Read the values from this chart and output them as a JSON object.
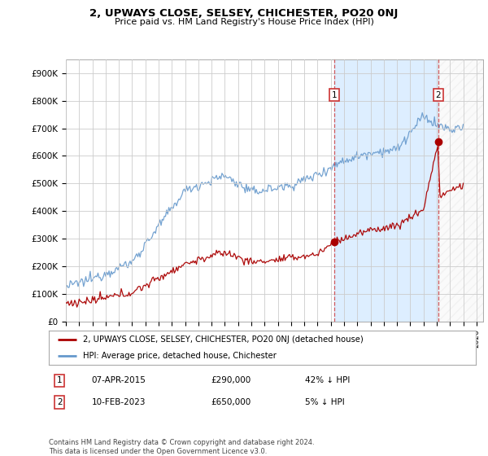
{
  "title": "2, UPWAYS CLOSE, SELSEY, CHICHESTER, PO20 0NJ",
  "subtitle": "Price paid vs. HM Land Registry's House Price Index (HPI)",
  "ylabel_ticks": [
    "£0",
    "£100K",
    "£200K",
    "£300K",
    "£400K",
    "£500K",
    "£600K",
    "£700K",
    "£800K",
    "£900K"
  ],
  "ytick_values": [
    0,
    100000,
    200000,
    300000,
    400000,
    500000,
    600000,
    700000,
    800000,
    900000
  ],
  "ylim": [
    0,
    950000
  ],
  "xlim_start": 1995.0,
  "xlim_end": 2026.5,
  "marker1_x": 2015.27,
  "marker1_y": 290000,
  "marker2_x": 2023.12,
  "marker2_y": 650000,
  "legend_line1": "2, UPWAYS CLOSE, SELSEY, CHICHESTER, PO20 0NJ (detached house)",
  "legend_line2": "HPI: Average price, detached house, Chichester",
  "footer": "Contains HM Land Registry data © Crown copyright and database right 2024.\nThis data is licensed under the Open Government Licence v3.0.",
  "line_color_red": "#aa0000",
  "line_color_blue": "#6699cc",
  "shade_color": "#ddeeff",
  "background_color": "#ffffff",
  "grid_color": "#cccccc",
  "row1": [
    "1",
    "07-APR-2015",
    "£290,000",
    "42% ↓ HPI"
  ],
  "row2": [
    "2",
    "10-FEB-2023",
    "£650,000",
    "5% ↓ HPI"
  ]
}
